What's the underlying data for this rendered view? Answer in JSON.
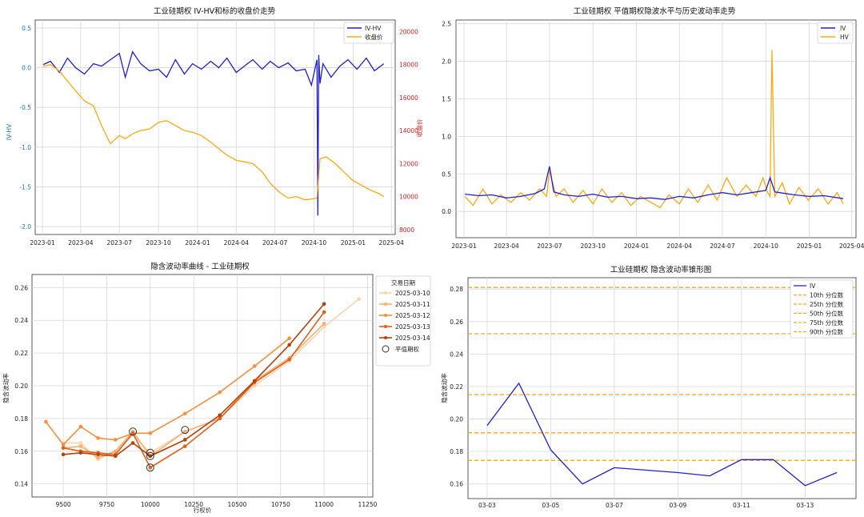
{
  "chart_data": [
    {
      "type": "line",
      "title": "工业硅期权 IV-HV和标的收盘价走势",
      "xlabel": "",
      "ylabel": "IV-HV",
      "y2label": "收盘价",
      "x_ticks": [
        "2023-01",
        "2023-04",
        "2023-07",
        "2023-10",
        "2024-01",
        "2024-04",
        "2024-07",
        "2024-10",
        "2025-01",
        "2025-04"
      ],
      "y_ticks": [
        "0.5",
        "0.0",
        "-0.5",
        "-1.0",
        "-1.5",
        "-2.0"
      ],
      "y2_ticks": [
        "20000",
        "18000",
        "16000",
        "14000",
        "12000",
        "10000",
        "8000"
      ],
      "xlim": [
        "2022-12-15",
        "2025-04-10"
      ],
      "ylim": [
        -2.1,
        0.6
      ],
      "y2lim": [
        7700,
        20700
      ],
      "legend_position": "upper right",
      "legend": [
        "IV-HV",
        "收盘价"
      ],
      "colors": {
        "IV-HV": "#1f1fdd",
        "收盘价": "#ffa812",
        "y2axis": "#dd2222",
        "yaxis": "#1f77b4"
      },
      "series": [
        {
          "name": "IV-HV",
          "axis": "left",
          "color": "#1f1fdd",
          "x": [
            "2023-01-03",
            "2023-01-20",
            "2023-02-10",
            "2023-03-01",
            "2023-03-20",
            "2023-04-10",
            "2023-05-01",
            "2023-05-20",
            "2023-06-10",
            "2023-07-01",
            "2023-07-15",
            "2023-08-01",
            "2023-08-20",
            "2023-09-10",
            "2023-10-01",
            "2023-10-20",
            "2023-11-10",
            "2023-12-01",
            "2023-12-20",
            "2024-01-10",
            "2024-02-01",
            "2024-02-20",
            "2024-03-10",
            "2024-04-01",
            "2024-04-20",
            "2024-05-10",
            "2024-06-01",
            "2024-06-20",
            "2024-07-10",
            "2024-08-01",
            "2024-08-20",
            "2024-09-10",
            "2024-09-25",
            "2024-10-08",
            "2024-10-10",
            "2024-10-12",
            "2024-10-15",
            "2024-10-22",
            "2024-11-10",
            "2024-12-01",
            "2024-12-20",
            "2025-01-10",
            "2025-02-01",
            "2025-02-20",
            "2025-03-14"
          ],
          "y": [
            0.04,
            0.08,
            -0.06,
            0.12,
            0.0,
            -0.08,
            0.05,
            0.02,
            0.1,
            0.18,
            -0.12,
            0.2,
            0.05,
            -0.04,
            -0.02,
            -0.12,
            0.1,
            -0.08,
            0.05,
            -0.02,
            0.08,
            0.0,
            0.12,
            -0.06,
            0.02,
            0.1,
            -0.02,
            0.08,
            0.0,
            0.06,
            -0.04,
            -0.02,
            -0.22,
            0.1,
            -1.86,
            0.16,
            -0.2,
            0.05,
            -0.12,
            0.02,
            0.1,
            -0.02,
            0.12,
            -0.04,
            0.05
          ]
        },
        {
          "name": "收盘价",
          "axis": "right",
          "color": "#ffa812",
          "x": [
            "2023-01-03",
            "2023-01-20",
            "2023-02-10",
            "2023-03-01",
            "2023-03-20",
            "2023-04-10",
            "2023-05-01",
            "2023-05-20",
            "2023-06-10",
            "2023-07-01",
            "2023-07-15",
            "2023-08-01",
            "2023-08-20",
            "2023-09-10",
            "2023-10-01",
            "2023-10-20",
            "2023-11-10",
            "2023-12-01",
            "2023-12-20",
            "2024-01-10",
            "2024-02-01",
            "2024-02-20",
            "2024-03-10",
            "2024-04-01",
            "2024-04-20",
            "2024-05-10",
            "2024-06-01",
            "2024-06-20",
            "2024-07-10",
            "2024-08-01",
            "2024-08-20",
            "2024-09-10",
            "2024-09-25",
            "2024-10-08",
            "2024-10-15",
            "2024-10-30",
            "2024-11-20",
            "2024-12-10",
            "2024-12-30",
            "2025-01-20",
            "2025-02-10",
            "2025-03-01",
            "2025-03-14"
          ],
          "y": [
            17900,
            18000,
            17600,
            17000,
            16400,
            15800,
            15500,
            14300,
            13200,
            13700,
            13500,
            13800,
            14000,
            14100,
            14500,
            14600,
            14300,
            14000,
            13900,
            13700,
            13300,
            12900,
            12500,
            12200,
            12100,
            12000,
            11500,
            10800,
            10300,
            9900,
            10000,
            9800,
            9850,
            9900,
            12300,
            12400,
            12000,
            11500,
            11000,
            10700,
            10400,
            10200,
            10000
          ]
        }
      ]
    },
    {
      "type": "line",
      "title": "工业硅期权 平值期权隐波水平与历史波动率走势",
      "xlabel": "",
      "ylabel": "",
      "x_ticks": [
        "2023-01",
        "2023-04",
        "2023-07",
        "2023-10",
        "2024-01",
        "2024-04",
        "2024-07",
        "2024-10",
        "2025-01",
        "2025-04"
      ],
      "y_ticks": [
        "0.0",
        "0.5",
        "1.0",
        "1.5",
        "2.0",
        "2.5"
      ],
      "xlim": [
        "2022-12-15",
        "2025-04-10"
      ],
      "ylim": [
        -0.35,
        2.55
      ],
      "legend_position": "upper right",
      "series": [
        {
          "name": "IV",
          "color": "#1f1fdd",
          "x": [
            "2023-01-03",
            "2023-02-01",
            "2023-03-01",
            "2023-04-01",
            "2023-05-01",
            "2023-06-01",
            "2023-06-20",
            "2023-07-01",
            "2023-07-10",
            "2023-08-01",
            "2023-09-01",
            "2023-10-01",
            "2023-11-01",
            "2023-12-01",
            "2024-01-01",
            "2024-02-01",
            "2024-03-01",
            "2024-04-01",
            "2024-05-01",
            "2024-06-01",
            "2024-07-01",
            "2024-08-01",
            "2024-09-01",
            "2024-10-01",
            "2024-10-10",
            "2024-10-20",
            "2024-11-10",
            "2024-12-01",
            "2025-01-01",
            "2025-02-01",
            "2025-03-14"
          ],
          "y": [
            0.23,
            0.21,
            0.22,
            0.18,
            0.2,
            0.24,
            0.3,
            0.6,
            0.26,
            0.22,
            0.2,
            0.23,
            0.19,
            0.2,
            0.17,
            0.18,
            0.16,
            0.2,
            0.18,
            0.22,
            0.25,
            0.22,
            0.25,
            0.28,
            0.45,
            0.26,
            0.24,
            0.22,
            0.2,
            0.21,
            0.17
          ]
        },
        {
          "name": "HV",
          "color": "#ffa812",
          "x": [
            "2023-01-03",
            "2023-01-20",
            "2023-02-10",
            "2023-03-01",
            "2023-03-20",
            "2023-04-10",
            "2023-05-01",
            "2023-05-20",
            "2023-06-10",
            "2023-06-25",
            "2023-07-01",
            "2023-07-15",
            "2023-08-01",
            "2023-08-20",
            "2023-09-10",
            "2023-10-01",
            "2023-10-20",
            "2023-11-10",
            "2023-12-01",
            "2023-12-20",
            "2024-01-10",
            "2024-02-01",
            "2024-02-20",
            "2024-03-10",
            "2024-04-01",
            "2024-04-20",
            "2024-05-10",
            "2024-06-01",
            "2024-06-20",
            "2024-07-10",
            "2024-08-01",
            "2024-08-20",
            "2024-09-10",
            "2024-09-25",
            "2024-10-05",
            "2024-10-10",
            "2024-10-14",
            "2024-10-20",
            "2024-11-05",
            "2024-11-20",
            "2024-12-10",
            "2024-12-30",
            "2025-01-20",
            "2025-02-10",
            "2025-03-01",
            "2025-03-14"
          ],
          "y": [
            0.2,
            0.08,
            0.3,
            0.1,
            0.22,
            0.12,
            0.25,
            0.15,
            0.3,
            0.2,
            0.55,
            0.2,
            0.3,
            0.12,
            0.28,
            0.1,
            0.3,
            0.12,
            0.25,
            0.08,
            0.2,
            0.12,
            0.05,
            0.22,
            0.1,
            0.3,
            0.12,
            0.35,
            0.15,
            0.45,
            0.2,
            0.35,
            0.2,
            0.45,
            0.25,
            0.2,
            2.15,
            0.2,
            0.38,
            0.1,
            0.32,
            0.15,
            0.3,
            0.1,
            0.25,
            0.1
          ]
        }
      ]
    },
    {
      "type": "line",
      "title": "隐含波动率曲线 - 工业硅期权",
      "xlabel": "行权价",
      "ylabel": "隐含波动率",
      "x_ticks": [
        "9500",
        "9750",
        "10000",
        "10250",
        "10500",
        "10750",
        "11000",
        "11250"
      ],
      "y_ticks": [
        "0.14",
        "0.16",
        "0.18",
        "0.20",
        "0.22",
        "0.24",
        "0.26"
      ],
      "xlim": [
        9320,
        11280
      ],
      "ylim": [
        0.132,
        0.268
      ],
      "legend_title": "交易日期",
      "legend_position": "outside upper right",
      "atm_label": "平值期权",
      "series": [
        {
          "name": "2025-03-10",
          "color": "#fdd3b0",
          "x": [
            9500,
            9600,
            9700,
            9800,
            9900,
            10000,
            10200,
            10400,
            10600,
            10800,
            11000,
            11200
          ],
          "y": [
            0.165,
            0.165,
            0.155,
            0.16,
            0.17,
            0.159,
            0.172,
            0.18,
            0.2,
            0.215,
            0.236,
            0.253
          ]
        },
        {
          "name": "2025-03-11",
          "color": "#fdae6b",
          "x": [
            9500,
            9600,
            9700,
            9800,
            9900,
            10000,
            10200,
            10400,
            10600,
            10800,
            11000
          ],
          "y": [
            0.162,
            0.163,
            0.156,
            0.16,
            0.172,
            0.157,
            0.172,
            0.18,
            0.203,
            0.217,
            0.238
          ]
        },
        {
          "name": "2025-03-12",
          "color": "#f88e3e",
          "x": [
            9400,
            9500,
            9600,
            9700,
            9800,
            9900,
            10000,
            10200,
            10400,
            10600,
            10800
          ],
          "y": [
            0.178,
            0.164,
            0.175,
            0.168,
            0.167,
            0.171,
            0.171,
            0.183,
            0.196,
            0.212,
            0.229
          ]
        },
        {
          "name": "2025-03-13",
          "color": "#e0601a",
          "x": [
            9500,
            9600,
            9700,
            9800,
            9900,
            10000,
            10200,
            10400,
            10600,
            10800,
            11000
          ],
          "y": [
            0.162,
            0.16,
            0.159,
            0.158,
            0.171,
            0.15,
            0.163,
            0.18,
            0.202,
            0.216,
            0.245
          ]
        },
        {
          "name": "2025-03-14",
          "color": "#b4420c",
          "x": [
            9500,
            9600,
            9700,
            9800,
            9900,
            10000,
            10200,
            10400,
            10600,
            10800,
            11000
          ],
          "y": [
            0.158,
            0.159,
            0.158,
            0.157,
            0.165,
            0.157,
            0.167,
            0.182,
            0.203,
            0.225,
            0.25
          ]
        }
      ],
      "atm_points": [
        {
          "x": 9900,
          "y": 0.172
        },
        {
          "x": 10000,
          "y": 0.159
        },
        {
          "x": 10000,
          "y": 0.157
        },
        {
          "x": 10000,
          "y": 0.15
        },
        {
          "x": 10200,
          "y": 0.173
        }
      ]
    },
    {
      "type": "line",
      "title": "工业硅期权 隐含波动率锥形图",
      "xlabel": "",
      "ylabel": "隐含波动率",
      "x_ticks": [
        "03-03",
        "03-05",
        "03-07",
        "03-09",
        "03-11",
        "03-13"
      ],
      "y_ticks": [
        "0.16",
        "0.18",
        "0.20",
        "0.22",
        "0.24",
        "0.26",
        "0.28"
      ],
      "xlim": [
        -0.6,
        11.6
      ],
      "ylim": [
        0.151,
        0.287
      ],
      "legend_position": "upper right",
      "series": [
        {
          "name": "IV",
          "color": "#1f1fdd",
          "x": [
            0,
            1,
            2,
            3,
            4,
            6,
            7,
            8,
            9,
            10,
            11
          ],
          "y": [
            0.196,
            0.222,
            0.181,
            0.16,
            0.17,
            0.167,
            0.165,
            0.175,
            0.175,
            0.159,
            0.167
          ]
        }
      ],
      "percentiles": [
        {
          "name": "10th 分位数",
          "y": 0.1745,
          "color": "#ffa812"
        },
        {
          "name": "25th 分位数",
          "y": 0.1915,
          "color": "#ffa812"
        },
        {
          "name": "50th 分位数",
          "y": 0.215,
          "color": "#ffa812"
        },
        {
          "name": "75th 分位数",
          "y": 0.2525,
          "color": "#ffa812"
        },
        {
          "name": "90th 分位数",
          "y": 0.281,
          "color": "#ffa812"
        }
      ]
    }
  ]
}
